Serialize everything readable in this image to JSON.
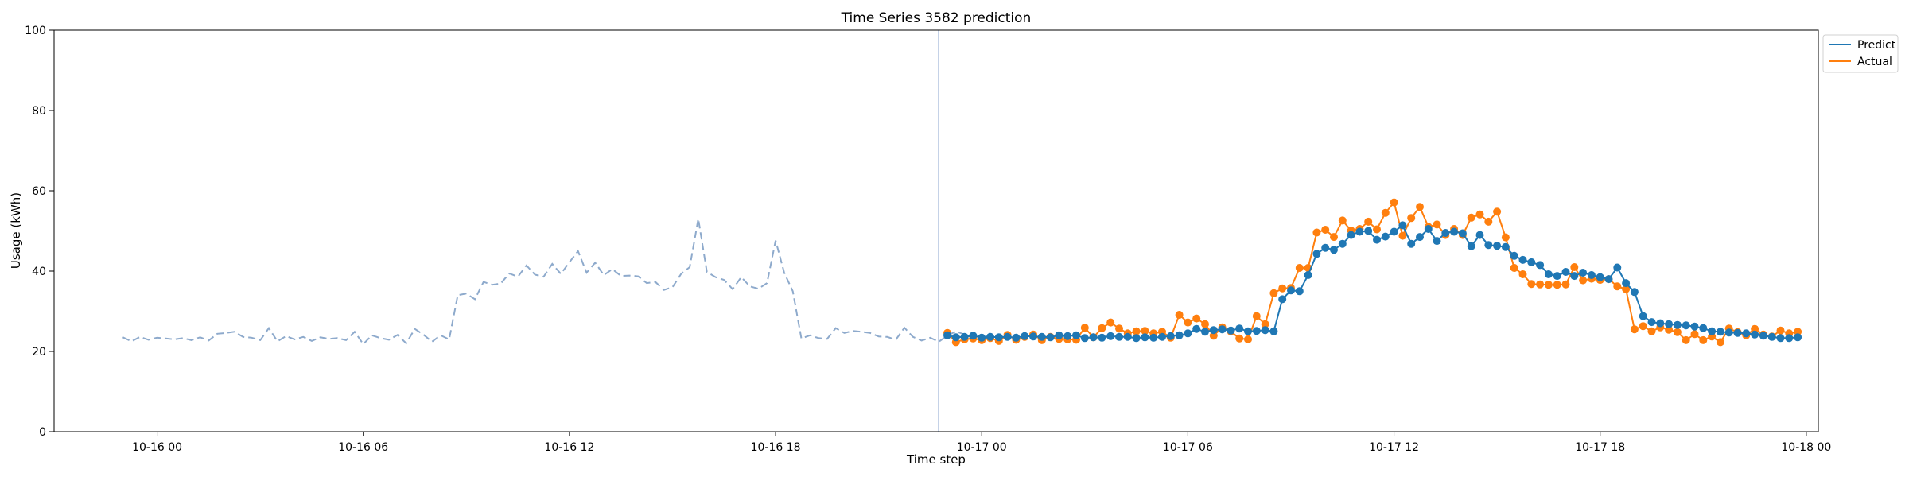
{
  "chart_data": {
    "type": "line",
    "title": "Time Series 3582 prediction",
    "xlabel": "Time step",
    "ylabel": "Usage (kWh)",
    "ylim": [
      0,
      100
    ],
    "yticks": [
      0,
      20,
      40,
      60,
      80,
      100
    ],
    "xlim_hours": [
      -3.0,
      48.35
    ],
    "xticks": [
      {
        "h": 0,
        "label": "10-16 00"
      },
      {
        "h": 6,
        "label": "10-16 06"
      },
      {
        "h": 12,
        "label": "10-16 12"
      },
      {
        "h": 18,
        "label": "10-16 18"
      },
      {
        "h": 24,
        "label": "10-17 00"
      },
      {
        "h": 30,
        "label": "10-17 06"
      },
      {
        "h": 36,
        "label": "10-17 12"
      },
      {
        "h": 42,
        "label": "10-17 18"
      },
      {
        "h": 48,
        "label": "10-18 00"
      }
    ],
    "forecast_start_hours": 22.75,
    "legend": {
      "placement": "top-right outside"
    },
    "colors": {
      "predict": "#1f77b4",
      "actual": "#ff7f0e",
      "history": "#8eaacc",
      "divider": "#8ea6d0"
    },
    "history": {
      "start_hour": -1,
      "step_hours": 0.25,
      "values": [
        23.5,
        22.5,
        23.6,
        22.9,
        23.4,
        23.2,
        23.0,
        23.3,
        22.8,
        23.5,
        22.7,
        24.4,
        24.6,
        24.9,
        23.6,
        23.4,
        22.8,
        25.8,
        22.5,
        23.8,
        23.0,
        23.6,
        22.6,
        23.5,
        23.1,
        23.3,
        22.8,
        24.9,
        21.8,
        24.0,
        23.3,
        22.9,
        24.1,
        22.0,
        25.6,
        24.2,
        22.4,
        24.0,
        23.0,
        34.0,
        34.4,
        33.0,
        37.3,
        36.6,
        36.9,
        39.4,
        38.6,
        41.4,
        39.1,
        38.6,
        41.8,
        39.3,
        42.2,
        45.0,
        39.6,
        42.1,
        39.0,
        40.5,
        38.8,
        38.9,
        38.7,
        37.0,
        37.3,
        35.3,
        36.0,
        39.3,
        41.0,
        53.0,
        39.8,
        38.5,
        37.8,
        35.5,
        38.5,
        36.2,
        35.6,
        37.0,
        47.6,
        39.6,
        35.0,
        23.2,
        24.0,
        23.3,
        23.1,
        25.8,
        24.6,
        25.1,
        24.9,
        24.6,
        23.7,
        23.6,
        22.9,
        25.9,
        23.6,
        22.7,
        23.4,
        22.4,
        23.9,
        25.0,
        24.2
      ]
    },
    "series": [
      {
        "name": "Predict",
        "start_hour": 23,
        "step_hours": 0.25,
        "values": [
          24.0,
          23.5,
          23.6,
          23.9,
          23.4,
          23.6,
          23.5,
          23.6,
          23.4,
          23.8,
          23.7,
          23.6,
          23.5,
          24.0,
          23.8,
          24.0,
          23.3,
          23.5,
          23.4,
          23.8,
          23.6,
          23.6,
          23.3,
          23.5,
          23.4,
          23.6,
          23.8,
          24.0,
          24.5,
          25.6,
          24.9,
          25.3,
          25.5,
          25.2,
          25.7,
          25.0,
          25.1,
          25.3,
          25.0,
          33.0,
          35.2,
          35.0,
          39.0,
          44.3,
          45.8,
          45.3,
          46.8,
          49.0,
          49.8,
          50.0,
          47.8,
          48.6,
          49.8,
          51.4,
          46.8,
          48.5,
          50.5,
          47.5,
          49.5,
          49.8,
          49.4,
          46.2,
          49.0,
          46.5,
          46.3,
          46.0,
          43.8,
          42.8,
          42.2,
          41.5,
          39.2,
          38.8,
          39.8,
          38.8,
          39.6,
          39.0,
          38.5,
          38.0,
          40.9,
          37.0,
          34.8,
          28.8,
          27.3,
          27.0,
          26.8,
          26.6,
          26.5,
          26.2,
          25.8,
          25.0,
          24.9,
          24.7,
          24.6,
          24.5,
          24.2,
          23.9,
          23.6,
          23.3,
          23.3,
          23.5
        ]
      },
      {
        "name": "Actual",
        "start_hour": 23,
        "step_hours": 0.25,
        "values": [
          24.6,
          22.3,
          23.0,
          23.2,
          22.8,
          23.3,
          22.6,
          24.1,
          22.9,
          23.6,
          24.2,
          22.8,
          23.6,
          23.1,
          23.0,
          22.9,
          25.9,
          23.5,
          25.8,
          27.2,
          25.7,
          24.5,
          25.0,
          25.1,
          24.5,
          24.9,
          23.4,
          29.1,
          27.2,
          28.2,
          26.8,
          23.9,
          26.0,
          25.0,
          23.2,
          23.0,
          28.8,
          26.8,
          34.5,
          35.7,
          35.8,
          40.8,
          40.8,
          49.6,
          50.3,
          48.5,
          52.6,
          50.1,
          50.5,
          52.3,
          50.4,
          54.5,
          57.1,
          48.8,
          53.2,
          56.0,
          51.0,
          51.6,
          49.0,
          50.5,
          49.0,
          53.3,
          54.1,
          52.3,
          54.8,
          48.4,
          40.8,
          39.2,
          36.8,
          36.7,
          36.6,
          36.6,
          36.7,
          41.0,
          37.7,
          38.1,
          37.8,
          38.0,
          36.2,
          35.5,
          25.5,
          26.3,
          25.0,
          26.0,
          25.4,
          24.8,
          22.8,
          24.3,
          22.8,
          23.7,
          22.3,
          25.7,
          24.8,
          24.0,
          25.6,
          24.2,
          23.7,
          25.2,
          24.5,
          24.9
        ]
      }
    ]
  }
}
